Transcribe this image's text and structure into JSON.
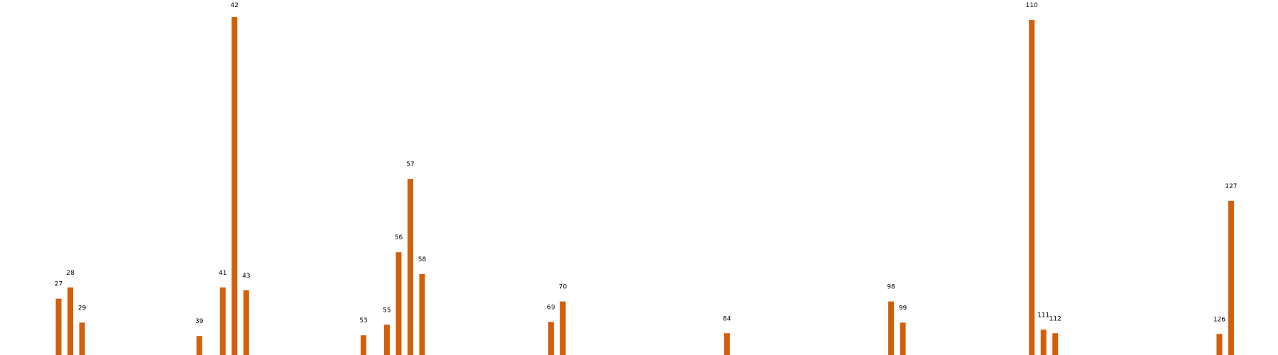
{
  "chart_data": {
    "type": "bar",
    "title": "",
    "xlabel": "",
    "ylabel": "",
    "axes_visible": false,
    "grid": false,
    "bar_color": "#d35f0b",
    "points": [
      {
        "label": "27",
        "x": 27,
        "value": 80
      },
      {
        "label": "28",
        "x": 28,
        "value": 96
      },
      {
        "label": "29",
        "x": 29,
        "value": 46
      },
      {
        "label": "39",
        "x": 39,
        "value": 27
      },
      {
        "label": "41",
        "x": 41,
        "value": 96
      },
      {
        "label": "42",
        "x": 42,
        "value": 480
      },
      {
        "label": "43",
        "x": 43,
        "value": 92
      },
      {
        "label": "53",
        "x": 53,
        "value": 28
      },
      {
        "label": "55",
        "x": 55,
        "value": 43
      },
      {
        "label": "56",
        "x": 56,
        "value": 146
      },
      {
        "label": "57",
        "x": 57,
        "value": 250
      },
      {
        "label": "58",
        "x": 58,
        "value": 115
      },
      {
        "label": "69",
        "x": 69,
        "value": 47
      },
      {
        "label": "70",
        "x": 70,
        "value": 76
      },
      {
        "label": "84",
        "x": 84,
        "value": 31
      },
      {
        "label": "98",
        "x": 98,
        "value": 76
      },
      {
        "label": "99",
        "x": 99,
        "value": 46
      },
      {
        "label": "110",
        "x": 110,
        "value": 476
      },
      {
        "label": "111",
        "x": 111,
        "value": 36
      },
      {
        "label": "112",
        "x": 112,
        "value": 31
      },
      {
        "label": "126",
        "x": 126,
        "value": 30
      },
      {
        "label": "127",
        "x": 127,
        "value": 219
      }
    ],
    "xlim": [
      22,
      131
    ],
    "ylim": [
      0,
      480
    ]
  }
}
